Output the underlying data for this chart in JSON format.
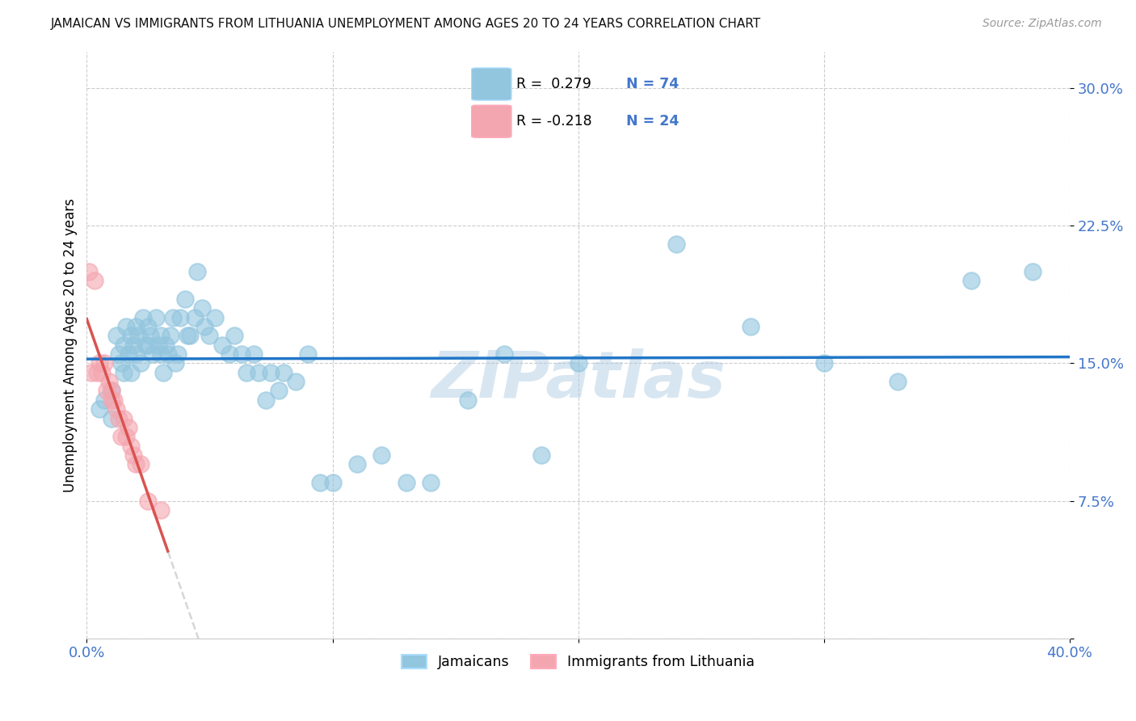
{
  "title": "JAMAICAN VS IMMIGRANTS FROM LITHUANIA UNEMPLOYMENT AMONG AGES 20 TO 24 YEARS CORRELATION CHART",
  "source": "Source: ZipAtlas.com",
  "ylabel": "Unemployment Among Ages 20 to 24 years",
  "xmin": 0.0,
  "xmax": 0.4,
  "ymin": 0.0,
  "ymax": 0.32,
  "yticks": [
    0.0,
    0.075,
    0.15,
    0.225,
    0.3
  ],
  "ytick_labels": [
    "",
    "7.5%",
    "15.0%",
    "22.5%",
    "30.0%"
  ],
  "xticks": [
    0.0,
    0.1,
    0.2,
    0.3,
    0.4
  ],
  "xtick_labels": [
    "0.0%",
    "",
    "",
    "",
    "40.0%"
  ],
  "legend_label1": "Jamaicans",
  "legend_label2": "Immigrants from Lithuania",
  "blue_color": "#92c5de",
  "pink_color": "#f4a6b0",
  "line_blue": "#2176c7",
  "line_pink": "#d9534f",
  "line_gray": "#cccccc",
  "axis_color": "#4477cc",
  "watermark": "ZIPatlas",
  "jamaicans_x": [
    0.005,
    0.007,
    0.01,
    0.01,
    0.012,
    0.013,
    0.014,
    0.015,
    0.015,
    0.016,
    0.017,
    0.018,
    0.018,
    0.019,
    0.02,
    0.02,
    0.021,
    0.022,
    0.023,
    0.024,
    0.025,
    0.025,
    0.026,
    0.027,
    0.028,
    0.029,
    0.03,
    0.03,
    0.031,
    0.032,
    0.033,
    0.034,
    0.035,
    0.036,
    0.037,
    0.038,
    0.04,
    0.041,
    0.042,
    0.044,
    0.045,
    0.047,
    0.048,
    0.05,
    0.052,
    0.055,
    0.058,
    0.06,
    0.063,
    0.065,
    0.068,
    0.07,
    0.073,
    0.075,
    0.078,
    0.08,
    0.085,
    0.09,
    0.095,
    0.1,
    0.11,
    0.12,
    0.13,
    0.14,
    0.155,
    0.17,
    0.185,
    0.2,
    0.24,
    0.27,
    0.3,
    0.33,
    0.36,
    0.385
  ],
  "jamaicans_y": [
    0.125,
    0.13,
    0.135,
    0.12,
    0.165,
    0.155,
    0.15,
    0.145,
    0.16,
    0.17,
    0.155,
    0.165,
    0.145,
    0.16,
    0.17,
    0.155,
    0.165,
    0.15,
    0.175,
    0.16,
    0.17,
    0.16,
    0.165,
    0.155,
    0.175,
    0.16,
    0.155,
    0.165,
    0.145,
    0.16,
    0.155,
    0.165,
    0.175,
    0.15,
    0.155,
    0.175,
    0.185,
    0.165,
    0.165,
    0.175,
    0.2,
    0.18,
    0.17,
    0.165,
    0.175,
    0.16,
    0.155,
    0.165,
    0.155,
    0.145,
    0.155,
    0.145,
    0.13,
    0.145,
    0.135,
    0.145,
    0.14,
    0.155,
    0.085,
    0.085,
    0.095,
    0.1,
    0.085,
    0.085,
    0.13,
    0.155,
    0.1,
    0.15,
    0.215,
    0.17,
    0.15,
    0.14,
    0.195,
    0.2
  ],
  "lithuania_x": [
    0.001,
    0.002,
    0.003,
    0.004,
    0.005,
    0.006,
    0.007,
    0.008,
    0.009,
    0.01,
    0.01,
    0.011,
    0.012,
    0.013,
    0.014,
    0.015,
    0.016,
    0.017,
    0.018,
    0.019,
    0.02,
    0.022,
    0.025,
    0.03
  ],
  "lithuania_y": [
    0.2,
    0.145,
    0.195,
    0.145,
    0.15,
    0.145,
    0.15,
    0.135,
    0.14,
    0.135,
    0.13,
    0.13,
    0.125,
    0.12,
    0.11,
    0.12,
    0.11,
    0.115,
    0.105,
    0.1,
    0.095,
    0.095,
    0.075,
    0.07
  ]
}
